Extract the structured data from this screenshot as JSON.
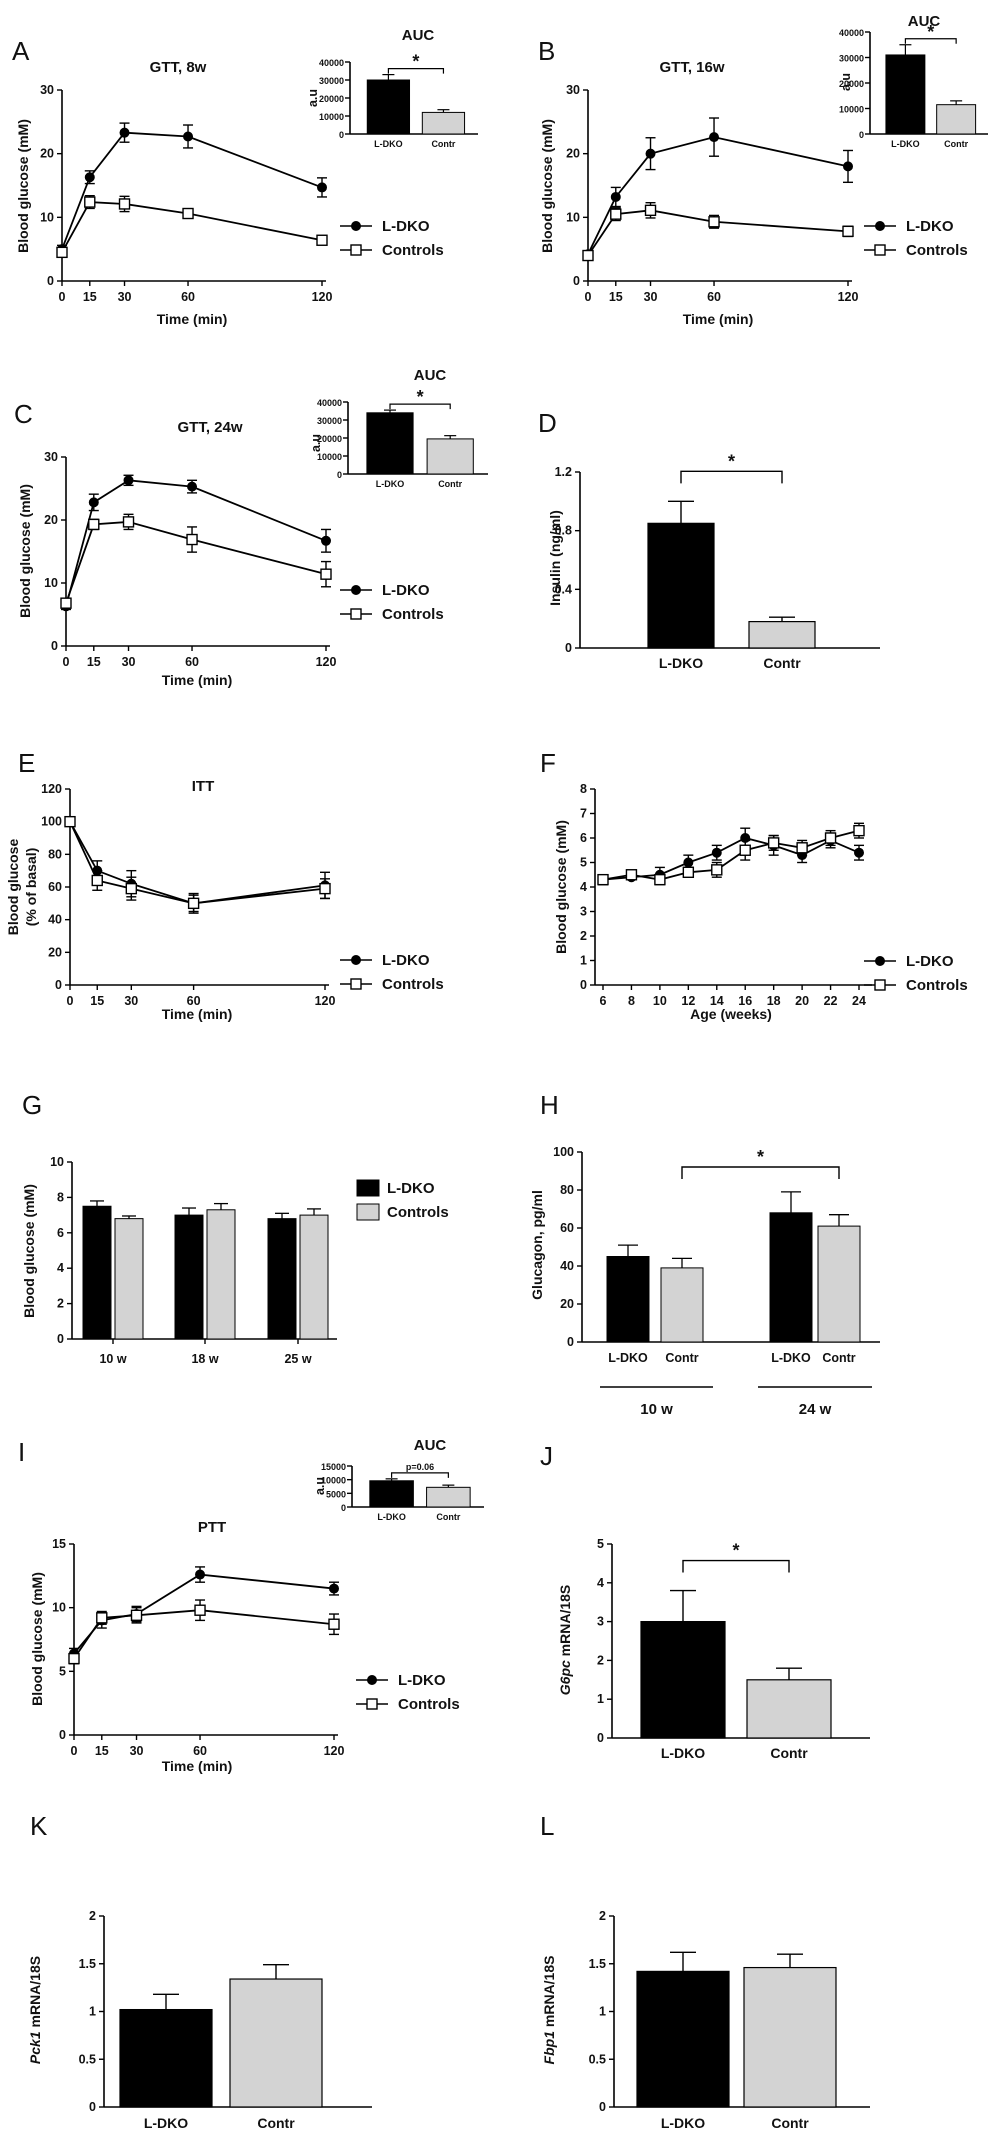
{
  "chart_data": [
    {
      "id": "A",
      "panel_label": "A",
      "type": "line",
      "title": "GTT, 8w",
      "xlabel": "Time (min)",
      "ylabel": "Blood glucose (mM)",
      "x": [
        0,
        15,
        30,
        60,
        120
      ],
      "xticks": [
        0,
        15,
        30,
        60,
        120
      ],
      "ylim": [
        0,
        30
      ],
      "yticks": [
        0,
        10,
        20,
        30
      ],
      "series": [
        {
          "name": "L-DKO",
          "marker": "filled-circle",
          "values": [
            5,
            16.3,
            23.3,
            22.7,
            14.7
          ],
          "errors": [
            0.6,
            1.0,
            1.5,
            1.8,
            1.5
          ]
        },
        {
          "name": "Controls",
          "marker": "open-square",
          "values": [
            4.5,
            12.4,
            12.1,
            10.6,
            6.4
          ],
          "errors": [
            0.5,
            1.0,
            1.2,
            0.7,
            0.4
          ]
        }
      ],
      "inset": {
        "title": "AUC",
        "ylabel": "a.u",
        "categories": [
          "L-DKO",
          "Contr"
        ],
        "values": [
          30000,
          12000
        ],
        "errors": [
          3000,
          1500
        ],
        "ylim": [
          0,
          40000
        ],
        "yticks": [
          0,
          10000,
          20000,
          30000,
          40000
        ],
        "annotation": "*"
      }
    },
    {
      "id": "B",
      "panel_label": "B",
      "type": "line",
      "title": "GTT, 16w",
      "xlabel": "Time (min)",
      "ylabel": "Blood glucose (mM)",
      "x": [
        0,
        15,
        30,
        60,
        120
      ],
      "xticks": [
        0,
        15,
        30,
        60,
        120
      ],
      "ylim": [
        0,
        30
      ],
      "yticks": [
        0,
        10,
        20,
        30
      ],
      "series": [
        {
          "name": "L-DKO",
          "marker": "filled-circle",
          "values": [
            4.2,
            13.2,
            20,
            22.6,
            18
          ],
          "errors": [
            0.5,
            1.5,
            2.5,
            3.0,
            2.5
          ]
        },
        {
          "name": "Controls",
          "marker": "open-square",
          "values": [
            4,
            10.5,
            11.1,
            9.3,
            7.8
          ],
          "errors": [
            0.5,
            1.0,
            1.2,
            1.0,
            0.8
          ]
        }
      ],
      "inset": {
        "title": "AUC",
        "ylabel": "a.u",
        "categories": [
          "L-DKO",
          "Contr"
        ],
        "values": [
          31000,
          11500
        ],
        "errors": [
          4000,
          1500
        ],
        "ylim": [
          0,
          40000
        ],
        "yticks": [
          0,
          10000,
          20000,
          30000,
          40000
        ],
        "annotation": "*"
      }
    },
    {
      "id": "C",
      "panel_label": "C",
      "type": "line",
      "title": "GTT, 24w",
      "xlabel": "Time (min)",
      "ylabel": "Blood glucose (mM)",
      "x": [
        0,
        15,
        30,
        60,
        120
      ],
      "xticks": [
        0,
        15,
        30,
        60,
        120
      ],
      "ylim": [
        0,
        30
      ],
      "yticks": [
        0,
        10,
        20,
        30
      ],
      "series": [
        {
          "name": "L-DKO",
          "marker": "filled-circle",
          "values": [
            6.3,
            22.8,
            26.3,
            25.3,
            16.7
          ],
          "errors": [
            0.5,
            1.3,
            0.8,
            1.0,
            1.8
          ]
        },
        {
          "name": "Controls",
          "marker": "open-square",
          "values": [
            6.8,
            19.3,
            19.7,
            16.9,
            11.4
          ],
          "errors": [
            0.5,
            0.8,
            1.2,
            2.0,
            2.0
          ]
        }
      ],
      "inset": {
        "title": "AUC",
        "ylabel": "a.u",
        "categories": [
          "L-DKO",
          "Contr"
        ],
        "values": [
          34000,
          19500
        ],
        "errors": [
          1500,
          1800
        ],
        "ylim": [
          0,
          40000
        ],
        "yticks": [
          0,
          10000,
          20000,
          30000,
          40000
        ],
        "annotation": "*"
      }
    },
    {
      "id": "D",
      "panel_label": "D",
      "type": "bar",
      "title": "",
      "xlabel": "",
      "ylabel": "Insulin (ng/ml)",
      "categories": [
        "L-DKO",
        "Contr"
      ],
      "values": [
        0.85,
        0.18
      ],
      "errors": [
        0.15,
        0.03
      ],
      "colors": [
        "#000000",
        "#d3d3d3"
      ],
      "ylim": [
        0,
        1.2
      ],
      "yticks": [
        0,
        0.4,
        0.8,
        1.2
      ],
      "yticklabels": [
        "0",
        "0.4",
        "0.8",
        "1.2"
      ],
      "annotation": "*"
    },
    {
      "id": "E",
      "panel_label": "E",
      "type": "line",
      "title": "ITT",
      "xlabel": "Time (min)",
      "ylabel": "Blood glucose (% of basal)",
      "x": [
        0,
        15,
        30,
        60,
        120
      ],
      "xticks": [
        0,
        15,
        30,
        60,
        120
      ],
      "ylim": [
        0,
        120
      ],
      "yticks": [
        0,
        20,
        40,
        60,
        80,
        100,
        120
      ],
      "series": [
        {
          "name": "L-DKO",
          "marker": "filled-circle",
          "values": [
            100,
            70,
            62,
            50,
            61
          ],
          "errors": [
            1,
            6,
            8,
            6,
            8
          ]
        },
        {
          "name": "Controls",
          "marker": "open-square",
          "values": [
            100,
            64,
            59,
            50,
            59
          ],
          "errors": [
            1,
            6,
            7,
            5,
            6
          ]
        }
      ]
    },
    {
      "id": "F",
      "panel_label": "F",
      "type": "line",
      "title": "",
      "xlabel": "Age (weeks)",
      "ylabel": "Blood glucose (mM)",
      "x": [
        6,
        8,
        10,
        12,
        14,
        16,
        18,
        20,
        22,
        24
      ],
      "xticks": [
        6,
        8,
        10,
        12,
        14,
        16,
        18,
        20,
        22,
        24
      ],
      "ylim": [
        0,
        8
      ],
      "yticks": [
        0,
        1,
        2,
        3,
        4,
        5,
        6,
        7,
        8
      ],
      "series": [
        {
          "name": "L-DKO",
          "marker": "filled-circle",
          "values": [
            4.3,
            4.4,
            4.5,
            5.0,
            5.4,
            6.0,
            5.7,
            5.3,
            5.9,
            5.4
          ],
          "errors": [
            0.2,
            0.1,
            0.3,
            0.3,
            0.3,
            0.4,
            0.4,
            0.3,
            0.3,
            0.3
          ]
        },
        {
          "name": "Controls",
          "marker": "open-square",
          "values": [
            4.3,
            4.5,
            4.3,
            4.6,
            4.7,
            5.5,
            5.8,
            5.6,
            6.0,
            6.3
          ],
          "errors": [
            0.2,
            0.1,
            0.2,
            0.2,
            0.3,
            0.4,
            0.3,
            0.3,
            0.3,
            0.3
          ]
        }
      ]
    },
    {
      "id": "G",
      "panel_label": "G",
      "type": "bar",
      "title": "",
      "xlabel": "",
      "ylabel": "Blood glucose (mM)",
      "categories": [
        "10 w",
        "18 w",
        "25 w"
      ],
      "ylim": [
        0,
        10
      ],
      "yticks": [
        0,
        2,
        4,
        6,
        8,
        10
      ],
      "series": [
        {
          "name": "L-DKO",
          "color": "#000000",
          "values": [
            7.5,
            7.0,
            6.8
          ],
          "errors": [
            0.3,
            0.4,
            0.3
          ]
        },
        {
          "name": "Controls",
          "color": "#d3d3d3",
          "values": [
            6.8,
            7.3,
            7.0
          ],
          "errors": [
            0.15,
            0.35,
            0.35
          ]
        }
      ]
    },
    {
      "id": "H",
      "panel_label": "H",
      "type": "bar",
      "title": "",
      "xlabel": "",
      "ylabel": "Glucagon, pg/ml",
      "categories": [
        "L-DKO",
        "Contr",
        "L-DKO",
        "Contr"
      ],
      "groups": [
        "10 w",
        "24 w"
      ],
      "values": [
        45,
        39,
        68,
        61
      ],
      "errors": [
        6,
        5,
        11,
        6
      ],
      "colors": [
        "#000000",
        "#d3d3d3",
        "#000000",
        "#d3d3d3"
      ],
      "ylim": [
        0,
        100
      ],
      "yticks": [
        0,
        20,
        40,
        60,
        80,
        100
      ],
      "annotation": "*"
    },
    {
      "id": "I",
      "panel_label": "I",
      "type": "line",
      "title": "PTT",
      "xlabel": "Time (min)",
      "ylabel": "Blood glucose (mM)",
      "x": [
        0,
        15,
        30,
        60,
        120
      ],
      "xticks": [
        0,
        15,
        30,
        60,
        120
      ],
      "ylim": [
        0,
        15
      ],
      "yticks": [
        0,
        5,
        10,
        15
      ],
      "series": [
        {
          "name": "L-DKO",
          "marker": "filled-circle",
          "values": [
            6.4,
            9.0,
            9.5,
            12.6,
            11.5
          ],
          "errors": [
            0.4,
            0.6,
            0.6,
            0.6,
            0.5
          ]
        },
        {
          "name": "Controls",
          "marker": "open-square",
          "values": [
            6.0,
            9.2,
            9.4,
            9.8,
            8.7
          ],
          "errors": [
            0.4,
            0.5,
            0.6,
            0.8,
            0.8
          ]
        }
      ],
      "inset": {
        "title": "AUC",
        "ylabel": "a.u",
        "categories": [
          "L-DKO",
          "Contr"
        ],
        "values": [
          9600,
          7200
        ],
        "errors": [
          700,
          800
        ],
        "ylim": [
          0,
          15000
        ],
        "yticks": [
          0,
          5000,
          10000,
          15000
        ],
        "annotation": "p=0.06"
      }
    },
    {
      "id": "J",
      "panel_label": "J",
      "type": "bar",
      "title": "",
      "xlabel": "",
      "ylabel_italic": "G6pc",
      "ylabel_rest": " mRNA/18S",
      "categories": [
        "L-DKO",
        "Contr"
      ],
      "values": [
        3.0,
        1.5
      ],
      "errors": [
        0.8,
        0.3
      ],
      "colors": [
        "#000000",
        "#d3d3d3"
      ],
      "ylim": [
        0,
        5
      ],
      "yticks": [
        0,
        1,
        2,
        3,
        4,
        5
      ],
      "annotation": "*"
    },
    {
      "id": "K",
      "panel_label": "K",
      "type": "bar",
      "title": "",
      "xlabel": "",
      "ylabel_italic": "Pck1",
      "ylabel_rest": " mRNA/18S",
      "categories": [
        "L-DKO",
        "Contr"
      ],
      "values": [
        1.02,
        1.34
      ],
      "errors": [
        0.16,
        0.15
      ],
      "colors": [
        "#000000",
        "#d3d3d3"
      ],
      "ylim": [
        0,
        2
      ],
      "yticks": [
        0,
        0.5,
        1,
        1.5,
        2
      ],
      "yticklabels": [
        "0",
        "0.5",
        "1",
        "1.5",
        "2"
      ]
    },
    {
      "id": "L",
      "panel_label": "L",
      "type": "bar",
      "title": "",
      "xlabel": "",
      "ylabel_italic": "Fbp1",
      "ylabel_rest": " mRNA/18S",
      "categories": [
        "L-DKO",
        "Contr"
      ],
      "values": [
        1.42,
        1.46
      ],
      "errors": [
        0.2,
        0.14
      ],
      "colors": [
        "#000000",
        "#d3d3d3"
      ],
      "ylim": [
        0,
        2
      ],
      "yticks": [
        0,
        0.5,
        1,
        1.5,
        2
      ],
      "yticklabels": [
        "0",
        "0.5",
        "1",
        "1.5",
        "2"
      ]
    }
  ]
}
